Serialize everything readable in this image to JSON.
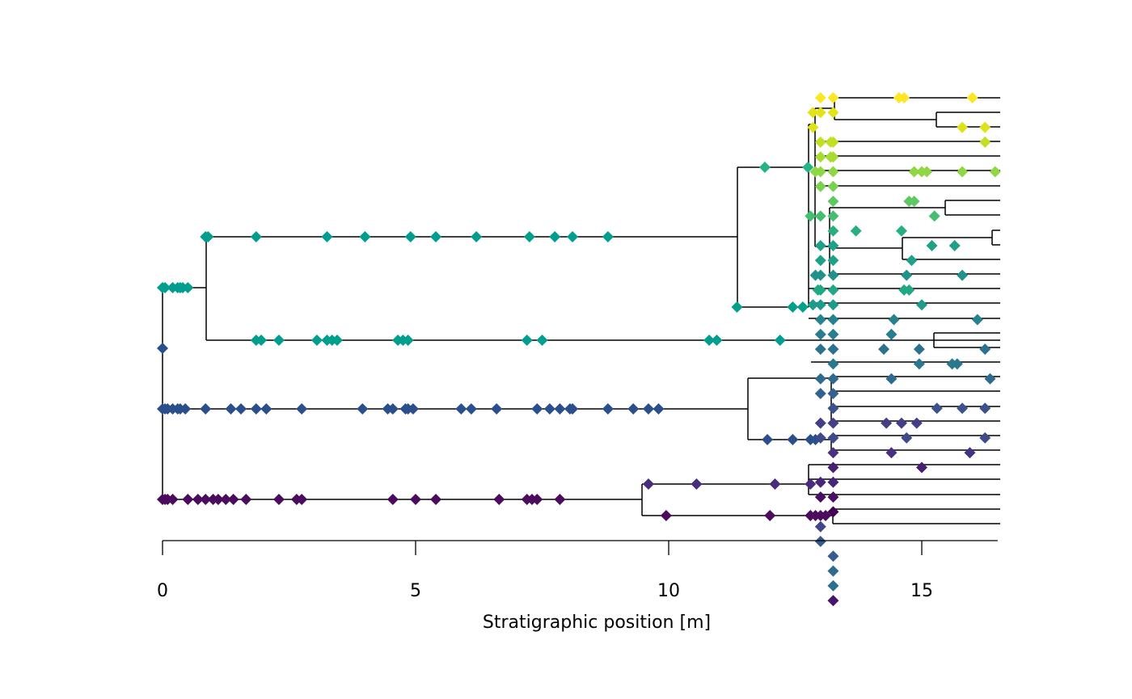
{
  "chart_data": {
    "type": "scatter",
    "title": "",
    "xlabel": "Stratigraphic position [m]",
    "ylabel": "",
    "xlim": [
      0,
      16.5
    ],
    "x_ticks": [
      {
        "value": 0,
        "label": "0"
      },
      {
        "value": 5,
        "label": "5"
      },
      {
        "value": 10,
        "label": "10"
      },
      {
        "value": 15,
        "label": "15"
      }
    ],
    "grid": false,
    "legend": "none",
    "marker": "diamond",
    "tree_color": "#000000",
    "tree": {
      "x": 0,
      "children": [
        {
          "x": 0,
          "children": [
            {
              "x": 0,
              "children": [
                {
                  "x": 0.86,
                  "children": [
                    {
                      "x": 11.35,
                      "children": [
                        {
                          "x": 12.8,
                          "children": [
                            {
                              "x": 12.9,
                              "children": [
                                {
                                  "x": 13.0,
                                  "children": [
                                    {
                                      "x": 13.25,
                                      "children": [
                                        {
                                          "x": 16.5,
                                          "lineage": 1
                                        },
                                        {
                                          "x": 15.25,
                                          "children": [
                                            {
                                              "x": 16.5,
                                              "lineage": 3
                                            },
                                            {
                                              "x": 16.5,
                                              "lineage": 4
                                            }
                                          ]
                                        }
                                      ]
                                    },
                                    {
                                      "x": 16.5,
                                      "lineage": 2
                                    }
                                  ]
                                },
                                {
                                  "x": 16.5,
                                  "lineage": 5
                                }
                              ]
                            },
                            {
                              "x": 12.85,
                              "children": [
                                {
                                  "x": 12.95,
                                  "children": [
                                    {
                                      "x": 16.5,
                                      "lineage": 6
                                    },
                                    {
                                      "x": 16.5,
                                      "lineage": 7
                                    },
                                    {
                                      "x": 16.5,
                                      "lineage": 8
                                    },
                                    {
                                      "x": 16.5,
                                      "lineage": 9
                                    }
                                  ]
                                },
                                {
                                  "x": 13.2,
                                  "children": [
                                    {
                                      "x": 15.45,
                                      "children": [
                                        {
                                          "x": 16.5,
                                          "lineage": 10
                                        },
                                        {
                                          "x": 16.5,
                                          "lineage": 11
                                        }
                                      ]
                                    },
                                    {
                                      "x": 14.6,
                                      "children": [
                                        {
                                          "x": 16.35,
                                          "children": [
                                            {
                                              "x": 16.5,
                                              "lineage": 12
                                            },
                                            {
                                              "x": 16.5,
                                              "lineage": 13
                                            }
                                          ]
                                        },
                                        {
                                          "x": 16.5,
                                          "lineage": 14
                                        }
                                      ]
                                    },
                                    {
                                      "x": 16.5,
                                      "lineage": 15
                                    }
                                  ]
                                }
                              ]
                            }
                          ]
                        },
                        {
                          "x": 12.85,
                          "children": [
                            {
                              "x": 16.5,
                              "lineage": 16
                            },
                            {
                              "x": 16.5,
                              "lineage": 17
                            },
                            {
                              "x": 16.5,
                              "lineage": 18
                            }
                          ]
                        }
                      ]
                    },
                    {
                      "x": 12.95,
                      "children": [
                        {
                          "x": 15.25,
                          "children": [
                            {
                              "x": 16.5,
                              "lineage": 19
                            },
                            {
                              "x": 16.5,
                              "lineage": 20
                            }
                          ]
                        },
                        {
                          "x": 16.5,
                          "lineage": 21
                        }
                      ]
                    }
                  ]
                },
                {
                  "x": 0,
                  "children": []
                }
              ]
            },
            {
              "x": 11.55,
              "children": [
                {
                  "x": 12.9,
                  "children": [
                    {
                      "x": 16.5,
                      "lineage": 22
                    },
                    {
                      "x": 16.5,
                      "lineage": 23
                    },
                    {
                      "x": 16.5,
                      "lineage": 24
                    },
                    {
                      "x": 16.5,
                      "lineage": 25
                    }
                  ]
                },
                {
                  "x": 13.0,
                  "children": [
                    {
                      "x": 16.5,
                      "lineage": 26
                    },
                    {
                      "x": 16.5,
                      "lineage": 27
                    },
                    {
                      "x": 16.5,
                      "lineage": 28
                    }
                  ]
                }
              ]
            }
          ]
        },
        {
          "x": 9.45,
          "children": [
            {
              "x": 12.8,
              "children": [
                {
                  "x": 16.5,
                  "lineage": 29
                },
                {
                  "x": 16.5,
                  "lineage": 30
                },
                {
                  "x": 16.5,
                  "lineage": 31
                },
                {
                  "x": 16.5,
                  "lineage": 32
                }
              ]
            },
            {
              "x": 13.0,
              "children": [
                {
                  "x": 16.5,
                  "lineage": 33
                },
                {
                  "x": 16.5,
                  "lineage": 34
                },
                {
                  "x": 16.5,
                  "lineage": 35
                }
              ]
            }
          ]
        }
      ]
    },
    "series": [
      {
        "color": "#fde725",
        "lineage": 1,
        "x": [
          13.0,
          13.25,
          14.55,
          14.65,
          16.0
        ]
      },
      {
        "color": "#e2e418",
        "lineage": 2,
        "x": [
          12.85,
          13.0,
          13.25
        ]
      },
      {
        "color": "#dde318",
        "lineage": 3,
        "x": [
          12.85,
          15.8,
          16.25
        ]
      },
      {
        "color": "#c2df23",
        "lineage": 4,
        "x": [
          13.0,
          13.2,
          13.25,
          16.25
        ]
      },
      {
        "color": "#a8db34",
        "lineage": 5,
        "x": [
          13.0,
          13.2,
          13.25
        ]
      },
      {
        "color": "#8fd744",
        "lineage": 6,
        "x": [
          12.9,
          13.0,
          13.25,
          14.85,
          15.0,
          15.1,
          15.8,
          16.45
        ]
      },
      {
        "color": "#7ad151",
        "lineage": 7,
        "x": [
          13.0,
          13.25
        ]
      },
      {
        "color": "#5ec962",
        "lineage": 8,
        "x": [
          13.25,
          14.75,
          14.85
        ]
      },
      {
        "color": "#44bf70",
        "lineage": 9,
        "x": [
          12.8,
          13.0,
          13.25,
          15.25
        ]
      },
      {
        "color": "#29af7f",
        "lineage": 10,
        "x": [
          13.25,
          13.7,
          14.6
        ]
      },
      {
        "color": "#1fa088",
        "lineage": 11,
        "x": [
          13.0,
          13.25,
          15.2,
          15.65
        ]
      },
      {
        "color": "#1fa187",
        "lineage": 12,
        "x": [
          13.0,
          13.25,
          14.8
        ]
      },
      {
        "color": "#21918c",
        "lineage": 13,
        "x": [
          12.9,
          13.0,
          13.25,
          14.7,
          15.8
        ]
      },
      {
        "color": "#22a884",
        "lineage": 14,
        "x": [
          12.95,
          13.0,
          13.25,
          14.65,
          14.75
        ]
      },
      {
        "color": "#1e9b8a",
        "lineage": 15,
        "x": [
          12.85,
          13.0,
          13.25,
          15.0
        ]
      },
      {
        "color": "#26828e",
        "lineage": 16,
        "x": [
          13.0,
          13.25,
          14.45,
          16.1
        ]
      },
      {
        "color": "#287d8e",
        "lineage": 17,
        "x": [
          13.0,
          13.25,
          14.4
        ]
      },
      {
        "color": "#2c728e",
        "lineage": 18,
        "x": [
          13.0,
          13.25,
          14.25,
          14.95,
          16.25
        ]
      },
      {
        "color": "#2a788e",
        "lineage": 19,
        "x": [
          13.25,
          14.95,
          15.6,
          15.7
        ]
      },
      {
        "color": "#306a8e",
        "lineage": 20,
        "x": [
          13.0,
          13.25,
          14.4,
          16.35
        ]
      },
      {
        "color": "#33638d",
        "lineage": 21,
        "x": [
          13.0,
          13.25
        ]
      },
      {
        "color": "#3b528b",
        "lineage": 22,
        "x": [
          13.25,
          15.3,
          15.8,
          16.25
        ]
      },
      {
        "color": "#433e85",
        "lineage": 23,
        "x": [
          13.0,
          13.25,
          14.3,
          14.6,
          14.9
        ]
      },
      {
        "color": "#3e4a89",
        "lineage": 24,
        "x": [
          13.0,
          13.25,
          14.7,
          16.25
        ]
      },
      {
        "color": "#46327e",
        "lineage": 25,
        "x": [
          13.25,
          14.4,
          15.95
        ]
      },
      {
        "color": "#481f70",
        "lineage": 26,
        "x": [
          13.25,
          15.0
        ]
      },
      {
        "color": "#482677",
        "lineage": 27,
        "x": [
          13.0,
          13.25
        ]
      },
      {
        "color": "#471063",
        "lineage": 28,
        "x": [
          13.0,
          13.25
        ]
      },
      {
        "color": "#440154",
        "lineage": 29,
        "x": [
          13.25
        ]
      },
      {
        "color": "#3f4788",
        "lineage": 30,
        "x": [
          13.0
        ]
      },
      {
        "color": "#375a8c",
        "lineage": 31,
        "x": [
          13.0
        ]
      },
      {
        "color": "#365c8d",
        "lineage": 32,
        "x": [
          13.25
        ]
      },
      {
        "color": "#2f6c8e",
        "lineage": 33,
        "x": [
          13.25
        ]
      },
      {
        "color": "#2d708e",
        "lineage": 34,
        "x": [
          13.25
        ]
      },
      {
        "color": "#481668",
        "lineage": 35,
        "x": [
          13.25
        ]
      }
    ],
    "branch_points": [
      {
        "color": "#009e8f",
        "y_of": "node_A",
        "x": [
          0,
          0.05,
          0.2,
          0.3,
          0.35,
          0.4,
          0.5
        ]
      },
      {
        "color": "#009e8f",
        "y_of": "node_B",
        "x": [
          0.85,
          0.9,
          1.85,
          3.25,
          4.0,
          4.9,
          5.4,
          6.2,
          7.25,
          7.75,
          8.1,
          8.8
        ]
      },
      {
        "color": "#009e8f",
        "y_of": "node_C",
        "x": [
          1.85,
          1.95,
          2.3,
          3.05,
          3.25,
          3.35,
          3.45,
          4.65,
          4.75,
          4.85,
          7.2,
          7.5,
          10.8,
          10.95,
          12.2
        ]
      },
      {
        "color": "#00a08a",
        "y_of": "node_D",
        "x": [
          11.35,
          12.45,
          12.65
        ]
      },
      {
        "color": "#25b384",
        "y_of": "node_E",
        "x": [
          11.9,
          12.75
        ]
      },
      {
        "color": "#2a4f8b",
        "y_of": "root_mid",
        "x": [
          0
        ]
      },
      {
        "color": "#2a4f8b",
        "y_of": "node_F",
        "x": [
          0,
          0.05,
          0.1,
          0.2,
          0.3,
          0.35,
          0.45,
          0.85,
          1.35,
          1.55,
          1.85,
          2.05,
          2.75,
          3.95,
          4.45,
          4.55,
          4.8,
          4.85,
          4.95,
          5.9,
          6.1,
          6.6,
          7.4,
          7.65,
          7.85,
          8.05,
          8.1,
          8.8,
          9.3,
          9.6,
          9.8
        ]
      },
      {
        "color": "#2a4f8b",
        "y_of": "node_G",
        "x": [
          11.95,
          12.45,
          12.8,
          12.9
        ]
      },
      {
        "color": "#4c0c5e",
        "y_of": "node_H",
        "x": [
          0,
          0.05,
          0.1,
          0.2,
          0.5,
          0.7,
          0.85,
          1.0,
          1.1,
          1.25,
          1.4,
          1.65,
          2.3,
          2.65,
          2.75,
          4.55,
          5.0,
          5.4,
          6.65,
          7.2,
          7.3,
          7.4,
          7.85
        ]
      },
      {
        "color": "#472d7b",
        "y_of": "node_I",
        "x": [
          9.6,
          10.55,
          12.1,
          12.8
        ]
      },
      {
        "color": "#4c0c5e",
        "y_of": "node_J",
        "x": [
          9.95,
          12.0,
          12.8,
          12.9,
          13.0,
          13.1
        ]
      }
    ]
  }
}
